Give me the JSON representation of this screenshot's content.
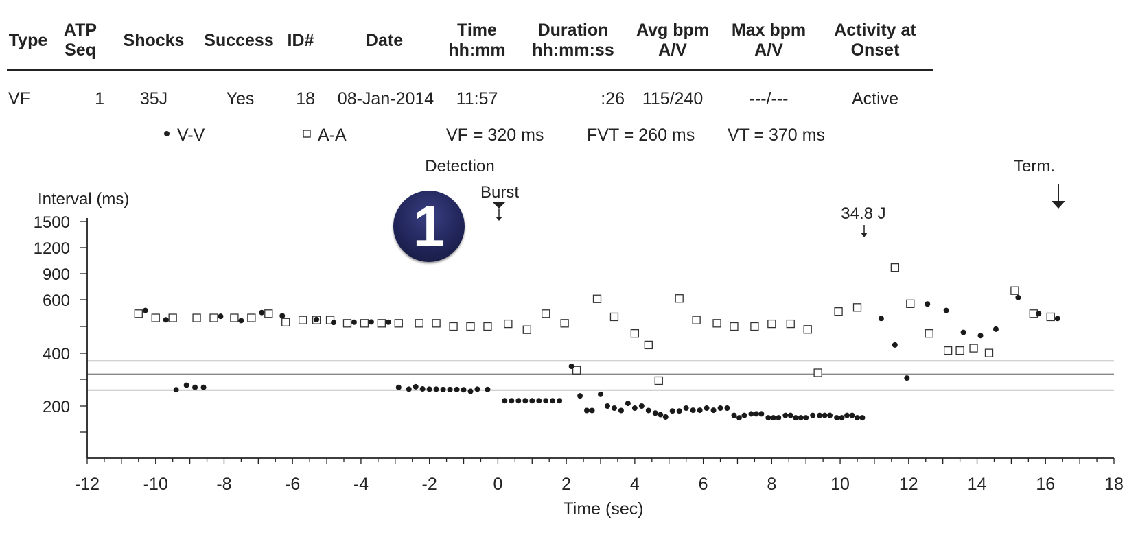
{
  "table": {
    "headers": [
      {
        "line1": "Type",
        "line2": ""
      },
      {
        "line1": "ATP",
        "line2": "Seq"
      },
      {
        "line1": "Shocks",
        "line2": ""
      },
      {
        "line1": "Success",
        "line2": ""
      },
      {
        "line1": "ID#",
        "line2": ""
      },
      {
        "line1": "Date",
        "line2": ""
      },
      {
        "line1": "Time",
        "line2": "hh:mm"
      },
      {
        "line1": "Duration",
        "line2": "hh:mm:ss"
      },
      {
        "line1": "Avg bpm",
        "line2": "A/V"
      },
      {
        "line1": "Max bpm",
        "line2": "A/V"
      },
      {
        "line1": "Activity at",
        "line2": "Onset"
      }
    ],
    "row": {
      "type": "VF",
      "atp_seq": "1",
      "shocks": "35J",
      "success": "Yes",
      "id": "18",
      "date": "08-Jan-2014",
      "time": "11:57",
      "duration": ":26",
      "avg_bpm": "115/240",
      "max_bpm": "---/---",
      "activity": "Active"
    }
  },
  "badge": "1",
  "chart_data": {
    "type": "scatter",
    "legend": {
      "vv_label": "V-V",
      "aa_label": "A-A",
      "vf_zone": "VF = 320 ms",
      "fvt_zone": "FVT = 260 ms",
      "vt_zone": "VT = 370 ms"
    },
    "ylabel": "Interval (ms)",
    "xlabel": "Time (sec)",
    "xlim": [
      -12,
      18
    ],
    "x_ticks": [
      -12,
      -10,
      -8,
      -6,
      -4,
      -2,
      0,
      2,
      4,
      6,
      8,
      10,
      12,
      14,
      16,
      18
    ],
    "y_ticks": [
      {
        "value": 1500,
        "label": "1500"
      },
      {
        "value": 1200,
        "label": "1200"
      },
      {
        "value": 900,
        "label": "900"
      },
      {
        "value": 600,
        "label": "600"
      },
      {
        "value": 500,
        "label": ""
      },
      {
        "value": 400,
        "label": "400"
      },
      {
        "value": 300,
        "label": ""
      },
      {
        "value": 200,
        "label": "200"
      },
      {
        "value": 100,
        "label": ""
      }
    ],
    "zone_lines_ms": [
      370,
      320,
      260
    ],
    "annotations": [
      {
        "text": "Detection",
        "x": 0,
        "arrow": "none"
      },
      {
        "text": "Burst",
        "x": 0,
        "arrow": "small"
      },
      {
        "text": "34.8 J",
        "x": 10.65,
        "arrow": "small"
      },
      {
        "text": "Term.",
        "x": 16.35,
        "arrow": "large"
      }
    ],
    "series": [
      {
        "name": "V-V",
        "marker": "filled-circle",
        "points": [
          [
            -10.3,
            560
          ],
          [
            -9.7,
            525
          ],
          [
            -8.1,
            538
          ],
          [
            -7.5,
            522
          ],
          [
            -6.9,
            552
          ],
          [
            -6.3,
            540
          ],
          [
            -5.3,
            526
          ],
          [
            -4.8,
            515
          ],
          [
            -4.2,
            516
          ],
          [
            -3.7,
            517
          ],
          [
            -3.2,
            516
          ],
          [
            -9.4,
            261
          ],
          [
            -9.1,
            278
          ],
          [
            -8.85,
            270
          ],
          [
            -8.6,
            270
          ],
          [
            -2.9,
            270
          ],
          [
            -2.6,
            263
          ],
          [
            -2.4,
            272
          ],
          [
            -2.2,
            264
          ],
          [
            -2.0,
            263
          ],
          [
            -1.8,
            263
          ],
          [
            -1.6,
            262
          ],
          [
            -1.4,
            262
          ],
          [
            -1.2,
            262
          ],
          [
            -1.0,
            261
          ],
          [
            -0.8,
            255
          ],
          [
            -0.6,
            263
          ],
          [
            -0.3,
            262
          ],
          [
            0.2,
            220
          ],
          [
            0.4,
            220
          ],
          [
            0.6,
            220
          ],
          [
            0.8,
            220
          ],
          [
            1.0,
            220
          ],
          [
            1.2,
            220
          ],
          [
            1.4,
            220
          ],
          [
            1.6,
            220
          ],
          [
            1.8,
            220
          ],
          [
            2.15,
            350
          ],
          [
            2.4,
            238
          ],
          [
            2.6,
            183
          ],
          [
            2.75,
            183
          ],
          [
            3.0,
            244
          ],
          [
            3.2,
            200
          ],
          [
            3.4,
            192
          ],
          [
            3.6,
            183
          ],
          [
            3.8,
            210
          ],
          [
            4.0,
            192
          ],
          [
            4.2,
            200
          ],
          [
            4.4,
            183
          ],
          [
            4.6,
            173
          ],
          [
            4.75,
            167
          ],
          [
            4.9,
            158
          ],
          [
            5.1,
            181
          ],
          [
            5.3,
            181
          ],
          [
            5.5,
            192
          ],
          [
            5.7,
            184
          ],
          [
            5.9,
            184
          ],
          [
            6.1,
            192
          ],
          [
            6.3,
            184
          ],
          [
            6.5,
            192
          ],
          [
            6.7,
            192
          ],
          [
            6.9,
            164
          ],
          [
            7.05,
            155
          ],
          [
            7.2,
            164
          ],
          [
            7.4,
            170
          ],
          [
            7.55,
            170
          ],
          [
            7.7,
            170
          ],
          [
            7.9,
            155
          ],
          [
            8.05,
            155
          ],
          [
            8.2,
            155
          ],
          [
            8.4,
            164
          ],
          [
            8.55,
            164
          ],
          [
            8.7,
            155
          ],
          [
            8.85,
            155
          ],
          [
            9.0,
            155
          ],
          [
            9.2,
            164
          ],
          [
            9.4,
            164
          ],
          [
            9.55,
            164
          ],
          [
            9.7,
            164
          ],
          [
            9.9,
            155
          ],
          [
            10.05,
            155
          ],
          [
            10.2,
            164
          ],
          [
            10.35,
            164
          ],
          [
            10.5,
            155
          ],
          [
            10.65,
            155
          ],
          [
            11.2,
            530
          ],
          [
            11.6,
            431
          ],
          [
            11.95,
            305
          ],
          [
            12.55,
            584
          ],
          [
            13.1,
            560
          ],
          [
            13.6,
            478
          ],
          [
            14.1,
            466
          ],
          [
            14.55,
            490
          ],
          [
            15.2,
            625
          ],
          [
            15.8,
            548
          ],
          [
            16.35,
            530
          ]
        ]
      },
      {
        "name": "A-A",
        "marker": "open-square",
        "points": [
          [
            -10.5,
            548
          ],
          [
            -10.0,
            532
          ],
          [
            -9.5,
            532
          ],
          [
            -8.8,
            532
          ],
          [
            -8.3,
            532
          ],
          [
            -7.7,
            532
          ],
          [
            -7.2,
            532
          ],
          [
            -6.7,
            548
          ],
          [
            -6.2,
            516
          ],
          [
            -5.7,
            524
          ],
          [
            -5.3,
            524
          ],
          [
            -4.9,
            524
          ],
          [
            -4.4,
            512
          ],
          [
            -3.9,
            512
          ],
          [
            -3.4,
            512
          ],
          [
            -2.9,
            512
          ],
          [
            -2.3,
            512
          ],
          [
            -1.8,
            512
          ],
          [
            -1.3,
            500
          ],
          [
            -0.8,
            500
          ],
          [
            -0.3,
            500
          ],
          [
            0.3,
            510
          ],
          [
            0.85,
            488
          ],
          [
            1.4,
            548
          ],
          [
            1.95,
            512
          ],
          [
            2.3,
            335
          ],
          [
            2.9,
            610
          ],
          [
            3.4,
            536
          ],
          [
            4.0,
            474
          ],
          [
            4.4,
            431
          ],
          [
            4.7,
            295
          ],
          [
            5.3,
            614
          ],
          [
            5.8,
            524
          ],
          [
            6.4,
            512
          ],
          [
            6.9,
            500
          ],
          [
            7.5,
            500
          ],
          [
            8.0,
            510
          ],
          [
            8.55,
            510
          ],
          [
            9.05,
            489
          ],
          [
            9.35,
            325
          ],
          [
            9.95,
            556
          ],
          [
            10.5,
            571
          ],
          [
            11.6,
            970
          ],
          [
            12.05,
            585
          ],
          [
            12.6,
            474
          ],
          [
            13.15,
            410
          ],
          [
            13.5,
            410
          ],
          [
            13.9,
            419
          ],
          [
            14.35,
            401
          ],
          [
            15.1,
            705
          ],
          [
            15.65,
            548
          ],
          [
            16.15,
            536
          ]
        ]
      }
    ]
  }
}
